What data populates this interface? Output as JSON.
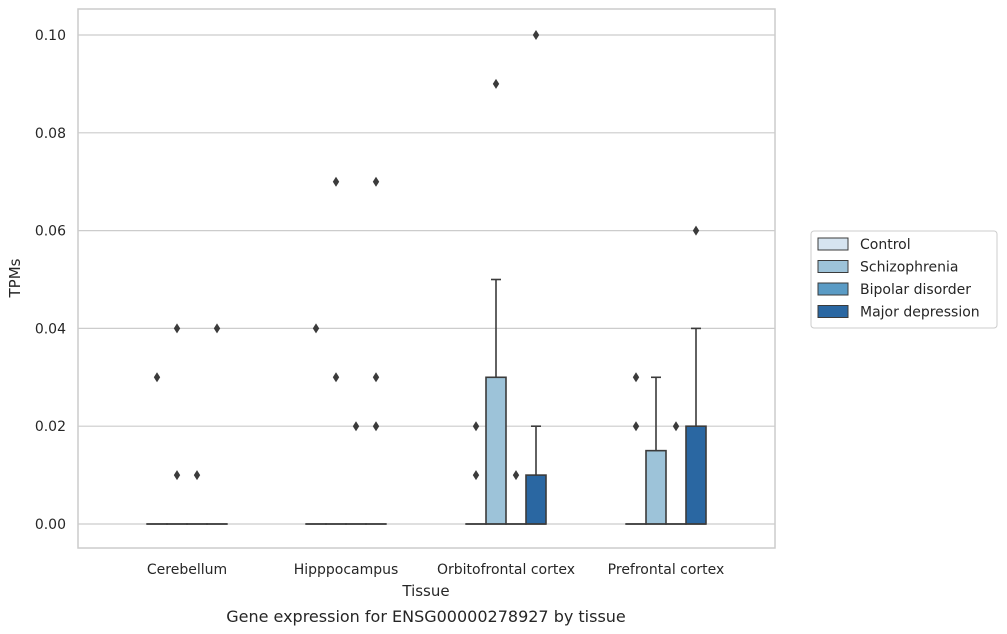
{
  "chart_data": {
    "type": "box",
    "title": "",
    "caption": "Gene expression for ENSG00000278927 by tissue",
    "xlabel": "Tissue",
    "ylabel": "TPMs",
    "categories": [
      "Cerebellum",
      "Hipppocampus",
      "Orbitofrontal cortex",
      "Prefrontal cortex"
    ],
    "ylim": [
      -0.005,
      0.105
    ],
    "yticks": [
      0.0,
      0.02,
      0.04,
      0.06,
      0.08,
      0.1
    ],
    "ytick_labels": [
      "0.00",
      "0.02",
      "0.04",
      "0.06",
      "0.08",
      "0.10"
    ],
    "grid": true,
    "legend_position": "right",
    "series": [
      {
        "name": "Control",
        "color": "#d6e4f0",
        "boxes": [
          {
            "q1": 0,
            "median": 0,
            "q3": 0,
            "whisker_low": 0,
            "whisker_high": 0,
            "outliers": [
              0.03
            ]
          },
          {
            "q1": 0,
            "median": 0,
            "q3": 0,
            "whisker_low": 0,
            "whisker_high": 0,
            "outliers": [
              0.04
            ]
          },
          {
            "q1": 0,
            "median": 0,
            "q3": 0,
            "whisker_low": 0,
            "whisker_high": 0,
            "outliers": [
              0.01,
              0.02
            ]
          },
          {
            "q1": 0,
            "median": 0,
            "q3": 0,
            "whisker_low": 0,
            "whisker_high": 0,
            "outliers": [
              0.02,
              0.03
            ]
          }
        ]
      },
      {
        "name": "Schizophrenia",
        "color": "#9dc3d9",
        "boxes": [
          {
            "q1": 0,
            "median": 0,
            "q3": 0,
            "whisker_low": 0,
            "whisker_high": 0,
            "outliers": [
              0.01,
              0.04
            ]
          },
          {
            "q1": 0,
            "median": 0,
            "q3": 0,
            "whisker_low": 0,
            "whisker_high": 0,
            "outliers": [
              0.03,
              0.07
            ]
          },
          {
            "q1": 0,
            "median": 0,
            "q3": 0.03,
            "whisker_low": 0,
            "whisker_high": 0.05,
            "outliers": [
              0.09
            ]
          },
          {
            "q1": 0,
            "median": 0,
            "q3": 0.015,
            "whisker_low": 0,
            "whisker_high": 0.03,
            "outliers": []
          }
        ]
      },
      {
        "name": "Bipolar disorder",
        "color": "#5a9bc5",
        "boxes": [
          {
            "q1": 0,
            "median": 0,
            "q3": 0,
            "whisker_low": 0,
            "whisker_high": 0,
            "outliers": [
              0.01
            ]
          },
          {
            "q1": 0,
            "median": 0,
            "q3": 0,
            "whisker_low": 0,
            "whisker_high": 0,
            "outliers": [
              0.02
            ]
          },
          {
            "q1": 0,
            "median": 0,
            "q3": 0,
            "whisker_low": 0,
            "whisker_high": 0,
            "outliers": [
              0.01
            ]
          },
          {
            "q1": 0,
            "median": 0,
            "q3": 0,
            "whisker_low": 0,
            "whisker_high": 0,
            "outliers": [
              0.02
            ]
          }
        ]
      },
      {
        "name": "Major depression",
        "color": "#2a67a2",
        "boxes": [
          {
            "q1": 0,
            "median": 0,
            "q3": 0,
            "whisker_low": 0,
            "whisker_high": 0,
            "outliers": [
              0.04
            ]
          },
          {
            "q1": 0,
            "median": 0,
            "q3": 0,
            "whisker_low": 0,
            "whisker_high": 0,
            "outliers": [
              0.02,
              0.03,
              0.07
            ]
          },
          {
            "q1": 0,
            "median": 0,
            "q3": 0.01,
            "whisker_low": 0,
            "whisker_high": 0.02,
            "outliers": [
              0.1
            ]
          },
          {
            "q1": 0,
            "median": 0,
            "q3": 0.02,
            "whisker_low": 0,
            "whisker_high": 0.04,
            "outliers": [
              0.06
            ]
          }
        ]
      }
    ]
  }
}
